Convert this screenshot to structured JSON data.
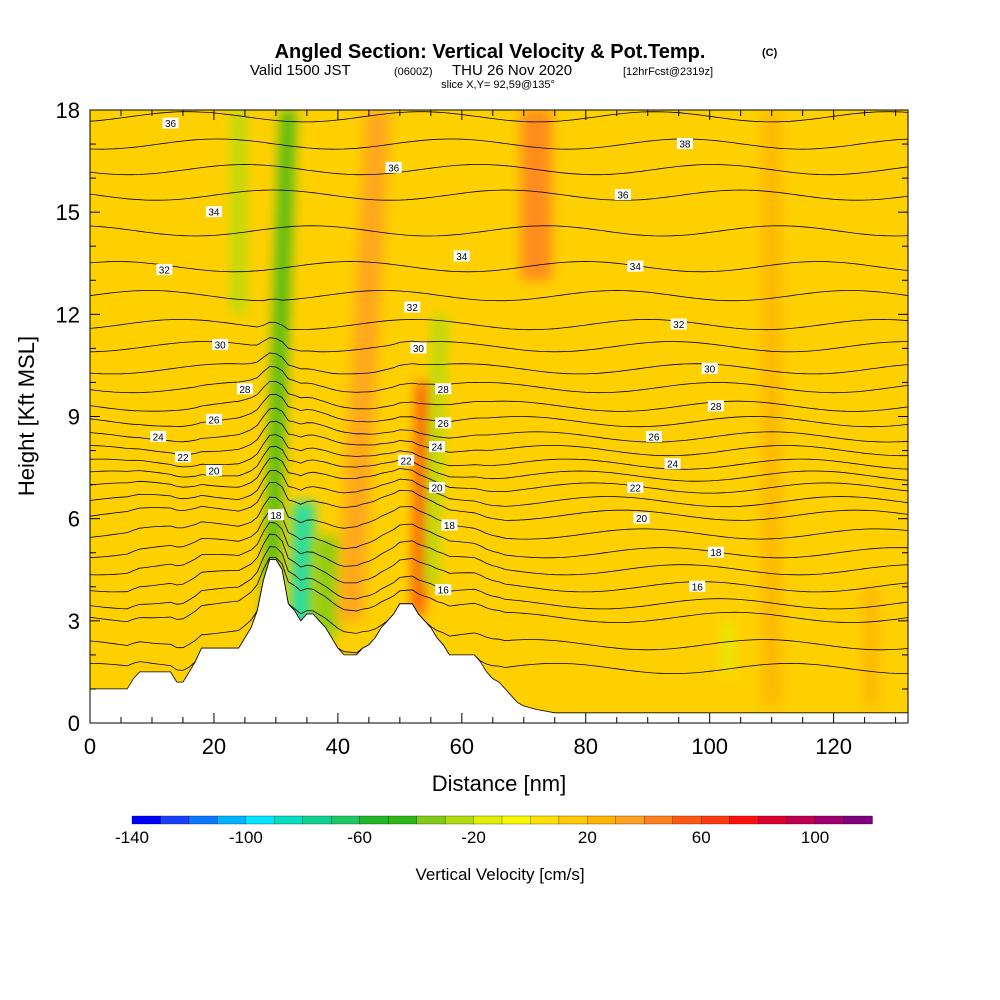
{
  "title": {
    "main": "Angled Section: Vertical Velocity & Pot.Temp.",
    "main_suffix": "(C)",
    "valid_prefix": "Valid 1500 JST",
    "valid_utc": "(0600Z)",
    "valid_day": "THU 26 Nov 2020",
    "forecast": "[12hrFcst@2319z]",
    "slice": "slice X,Y= 92,59@135°"
  },
  "chart_data": {
    "type": "heatmap",
    "xlabel": "Distance [nm]",
    "ylabel": "Height [Kft MSL]",
    "xlim": [
      0,
      132
    ],
    "ylim": [
      0,
      18
    ],
    "xticks": [
      0,
      20,
      40,
      60,
      80,
      100,
      120
    ],
    "yticks": [
      0,
      3,
      6,
      9,
      12,
      15,
      18
    ],
    "colorbar": {
      "label": "Vertical Velocity [cm/s]",
      "tick_labels": [
        -140,
        -100,
        -60,
        -20,
        20,
        60,
        100
      ],
      "levels": [
        -140,
        -130,
        -120,
        -110,
        -100,
        -90,
        -80,
        -70,
        -60,
        -50,
        -40,
        -30,
        -20,
        -10,
        0,
        10,
        20,
        30,
        40,
        50,
        60,
        70,
        80,
        90,
        100,
        110,
        120
      ],
      "colors": [
        "#0000ff",
        "#1a40ff",
        "#0a78ff",
        "#00b4ff",
        "#00e6ff",
        "#00e0c0",
        "#10d290",
        "#20c864",
        "#20b828",
        "#30b818",
        "#80cc18",
        "#b0dc10",
        "#e0ee00",
        "#f8f800",
        "#ffe000",
        "#ffc800",
        "#ffb400",
        "#ffa020",
        "#ff8020",
        "#ff5814",
        "#ff3a10",
        "#ff1010",
        "#e00030",
        "#c00050",
        "#a00070",
        "#800080"
      ]
    },
    "terrain_profile": [
      [
        0,
        1
      ],
      [
        6,
        1
      ],
      [
        7,
        1.3
      ],
      [
        8,
        1.5
      ],
      [
        13,
        1.5
      ],
      [
        14,
        1.2
      ],
      [
        15,
        1.2
      ],
      [
        16,
        1.5
      ],
      [
        17,
        1.8
      ],
      [
        18,
        2.2
      ],
      [
        24,
        2.2
      ],
      [
        25,
        2.5
      ],
      [
        26,
        2.8
      ],
      [
        27,
        3.3
      ],
      [
        28,
        4.2
      ],
      [
        29,
        4.8
      ],
      [
        30,
        4.8
      ],
      [
        31,
        4.5
      ],
      [
        32,
        3.5
      ],
      [
        33,
        3.3
      ],
      [
        34,
        3.0
      ],
      [
        35,
        3.2
      ],
      [
        36,
        3.2
      ],
      [
        37,
        3.0
      ],
      [
        38,
        2.8
      ],
      [
        39,
        2.5
      ],
      [
        40,
        2.2
      ],
      [
        41,
        2.0
      ],
      [
        43,
        2.0
      ],
      [
        44,
        2.2
      ],
      [
        45,
        2.3
      ],
      [
        46,
        2.5
      ],
      [
        47,
        2.8
      ],
      [
        48,
        3.0
      ],
      [
        49,
        3.2
      ],
      [
        50,
        3.5
      ],
      [
        52,
        3.5
      ],
      [
        53,
        3.2
      ],
      [
        54,
        3.0
      ],
      [
        55,
        2.8
      ],
      [
        56,
        2.5
      ],
      [
        57,
        2.3
      ],
      [
        58,
        2.0
      ],
      [
        62,
        2.0
      ],
      [
        63,
        1.8
      ],
      [
        64,
        1.5
      ],
      [
        65,
        1.3
      ],
      [
        66,
        1.2
      ],
      [
        67,
        1.0
      ],
      [
        68,
        0.8
      ],
      [
        69,
        0.6
      ],
      [
        70,
        0.5
      ],
      [
        72,
        0.4
      ],
      [
        75,
        0.3
      ],
      [
        132,
        0.3
      ]
    ],
    "features": [
      {
        "x": 29,
        "w": 2.5,
        "ymin": 2.6,
        "ymax": 18,
        "lean": 12,
        "value": -50
      },
      {
        "x": 34,
        "w": 3.5,
        "ymin": 2.7,
        "ymax": 6.5,
        "lean": 2,
        "value": -90
      },
      {
        "x": 38,
        "w": 4,
        "ymin": 2.5,
        "ymax": 5.5,
        "lean": 1,
        "value": -40
      },
      {
        "x": 42,
        "w": 4,
        "ymin": 3,
        "ymax": 18,
        "lean": 18,
        "value": 35
      },
      {
        "x": 53,
        "w": 2,
        "ymin": 3.2,
        "ymax": 10,
        "lean": 3,
        "value": 60
      },
      {
        "x": 55,
        "w": 2.5,
        "ymin": 4,
        "ymax": 12,
        "lean": 6,
        "value": -30
      },
      {
        "x": 72,
        "w": 5,
        "ymin": 13,
        "ymax": 18,
        "lean": 0,
        "value": 40
      },
      {
        "x": 24,
        "w": 2.5,
        "ymin": 12,
        "ymax": 18,
        "lean": 0,
        "value": -30
      },
      {
        "x": 103,
        "w": 2,
        "ymin": 1.5,
        "ymax": 3,
        "lean": 0,
        "value": -20
      },
      {
        "x": 110,
        "w": 3,
        "ymin": 0.5,
        "ymax": 18,
        "lean": 0,
        "value": 25
      },
      {
        "x": 126,
        "w": 2.5,
        "ymin": 0.5,
        "ymax": 4,
        "lean": 0,
        "value": 20
      }
    ],
    "theta_contours": {
      "levels": [
        16,
        18,
        20,
        22,
        24,
        26,
        28,
        30,
        32,
        34,
        36,
        38
      ],
      "labels": [
        {
          "text": "16",
          "x": 57,
          "y": 3.9
        },
        {
          "text": "16",
          "x": 98,
          "y": 4.0
        },
        {
          "text": "18",
          "x": 30,
          "y": 6.1
        },
        {
          "text": "18",
          "x": 58,
          "y": 5.8
        },
        {
          "text": "18",
          "x": 101,
          "y": 5.0
        },
        {
          "text": "20",
          "x": 20,
          "y": 7.4
        },
        {
          "text": "20",
          "x": 56,
          "y": 6.9
        },
        {
          "text": "20",
          "x": 89,
          "y": 6.0
        },
        {
          "text": "22",
          "x": 15,
          "y": 7.8
        },
        {
          "text": "22",
          "x": 51,
          "y": 7.7
        },
        {
          "text": "22",
          "x": 88,
          "y": 6.9
        },
        {
          "text": "24",
          "x": 11,
          "y": 8.4
        },
        {
          "text": "24",
          "x": 56,
          "y": 8.1
        },
        {
          "text": "24",
          "x": 94,
          "y": 7.6
        },
        {
          "text": "26",
          "x": 20,
          "y": 8.9
        },
        {
          "text": "26",
          "x": 57,
          "y": 8.8
        },
        {
          "text": "26",
          "x": 91,
          "y": 8.4
        },
        {
          "text": "28",
          "x": 25,
          "y": 9.8
        },
        {
          "text": "28",
          "x": 57,
          "y": 9.8
        },
        {
          "text": "28",
          "x": 101,
          "y": 9.3
        },
        {
          "text": "30",
          "x": 21,
          "y": 11.1
        },
        {
          "text": "30",
          "x": 53,
          "y": 11.0
        },
        {
          "text": "30",
          "x": 100,
          "y": 10.4
        },
        {
          "text": "32",
          "x": 12,
          "y": 13.3
        },
        {
          "text": "32",
          "x": 52,
          "y": 12.2
        },
        {
          "text": "32",
          "x": 95,
          "y": 11.7
        },
        {
          "text": "34",
          "x": 20,
          "y": 15.0
        },
        {
          "text": "34",
          "x": 60,
          "y": 13.7
        },
        {
          "text": "34",
          "x": 88,
          "y": 13.4
        },
        {
          "text": "36",
          "x": 13,
          "y": 17.6
        },
        {
          "text": "36",
          "x": 49,
          "y": 16.3
        },
        {
          "text": "36",
          "x": 86,
          "y": 15.5
        },
        {
          "text": "38",
          "x": 96,
          "y": 17.0
        }
      ]
    }
  }
}
